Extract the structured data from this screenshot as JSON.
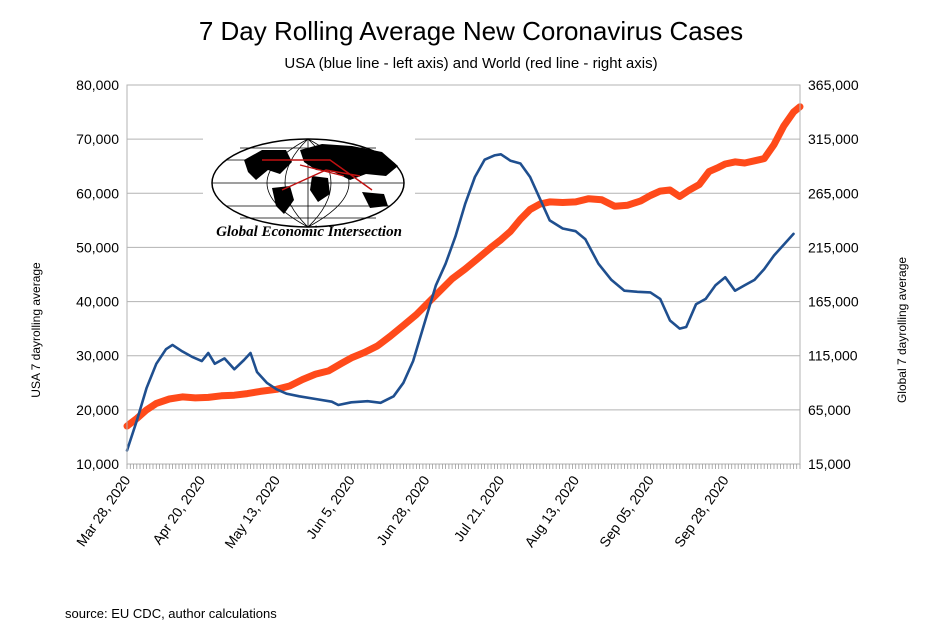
{
  "chart_data": {
    "type": "line",
    "title": "7 Day Rolling Average New Coronavirus Cases",
    "subtitle": "USA (blue line - left axis) and World (red line - right axis)",
    "ylabel_left": "USA 7 dayrolling average",
    "ylabel_right": "Global 7 dayrolling average",
    "source": "source: EU CDC, author calculations",
    "logo_text": "Global Economic Intersection",
    "x_axis": {
      "start_date": "2020-03-28",
      "end_date": "2020-10-21",
      "tick_labels": [
        "Mar 28, 2020",
        "Apr 20, 2020",
        "May 13, 2020",
        "Jun 5, 2020",
        "Jun 28, 2020",
        "Jul 21, 2020",
        "Aug 13, 2020",
        "Sep 05, 2020",
        "Sep 28, 2020"
      ]
    },
    "y_left": {
      "min": 10000,
      "max": 80000,
      "step": 10000,
      "tick_labels": [
        "10,000",
        "20,000",
        "30,000",
        "40,000",
        "50,000",
        "60,000",
        "70,000",
        "80,000"
      ]
    },
    "y_right": {
      "min": 15000,
      "max": 365000,
      "step": 50000,
      "tick_labels": [
        "15,000",
        "65,000",
        "115,000",
        "165,000",
        "215,000",
        "265,000",
        "315,000",
        "365,000"
      ]
    },
    "grid": true,
    "series": [
      {
        "name": "USA",
        "axis": "left",
        "color": "#1f4f8f",
        "points": [
          [
            "2020-03-28",
            12500
          ],
          [
            "2020-03-31",
            18000
          ],
          [
            "2020-04-03",
            24000
          ],
          [
            "2020-04-06",
            28500
          ],
          [
            "2020-04-09",
            31200
          ],
          [
            "2020-04-11",
            32000
          ],
          [
            "2020-04-14",
            30800
          ],
          [
            "2020-04-17",
            29800
          ],
          [
            "2020-04-20",
            29000
          ],
          [
            "2020-04-22",
            30500
          ],
          [
            "2020-04-24",
            28500
          ],
          [
            "2020-04-27",
            29500
          ],
          [
            "2020-04-30",
            27500
          ],
          [
            "2020-05-03",
            29200
          ],
          [
            "2020-05-05",
            30500
          ],
          [
            "2020-05-07",
            27000
          ],
          [
            "2020-05-10",
            25000
          ],
          [
            "2020-05-13",
            23800
          ],
          [
            "2020-05-16",
            23000
          ],
          [
            "2020-05-20",
            22500
          ],
          [
            "2020-05-25",
            22000
          ],
          [
            "2020-05-30",
            21500
          ],
          [
            "2020-06-01",
            20900
          ],
          [
            "2020-06-05",
            21400
          ],
          [
            "2020-06-10",
            21600
          ],
          [
            "2020-06-14",
            21300
          ],
          [
            "2020-06-18",
            22500
          ],
          [
            "2020-06-21",
            25000
          ],
          [
            "2020-06-24",
            29000
          ],
          [
            "2020-06-28",
            37000
          ],
          [
            "2020-07-01",
            43000
          ],
          [
            "2020-07-04",
            47000
          ],
          [
            "2020-07-07",
            52000
          ],
          [
            "2020-07-10",
            58000
          ],
          [
            "2020-07-13",
            63000
          ],
          [
            "2020-07-16",
            66200
          ],
          [
            "2020-07-19",
            67000
          ],
          [
            "2020-07-21",
            67200
          ],
          [
            "2020-07-24",
            66000
          ],
          [
            "2020-07-27",
            65500
          ],
          [
            "2020-07-30",
            63000
          ],
          [
            "2020-08-02",
            59000
          ],
          [
            "2020-08-05",
            55000
          ],
          [
            "2020-08-09",
            53500
          ],
          [
            "2020-08-13",
            53000
          ],
          [
            "2020-08-16",
            51500
          ],
          [
            "2020-08-20",
            47000
          ],
          [
            "2020-08-24",
            44000
          ],
          [
            "2020-08-28",
            42000
          ],
          [
            "2020-09-01",
            41800
          ],
          [
            "2020-09-05",
            41700
          ],
          [
            "2020-09-08",
            40500
          ],
          [
            "2020-09-11",
            36500
          ],
          [
            "2020-09-14",
            35000
          ],
          [
            "2020-09-16",
            35300
          ],
          [
            "2020-09-19",
            39500
          ],
          [
            "2020-09-22",
            40500
          ],
          [
            "2020-09-25",
            43000
          ],
          [
            "2020-09-28",
            44500
          ],
          [
            "2020-10-01",
            42000
          ],
          [
            "2020-10-04",
            43000
          ],
          [
            "2020-10-07",
            44000
          ],
          [
            "2020-10-10",
            46000
          ],
          [
            "2020-10-13",
            48500
          ],
          [
            "2020-10-16",
            50500
          ],
          [
            "2020-10-19",
            52500
          ]
        ]
      },
      {
        "name": "World",
        "axis": "right",
        "color": "#ff4a1a",
        "points": [
          [
            "2020-03-28",
            50000
          ],
          [
            "2020-03-31",
            57000
          ],
          [
            "2020-04-03",
            65000
          ],
          [
            "2020-04-06",
            71000
          ],
          [
            "2020-04-10",
            75000
          ],
          [
            "2020-04-14",
            77000
          ],
          [
            "2020-04-18",
            76000
          ],
          [
            "2020-04-22",
            76500
          ],
          [
            "2020-04-26",
            78000
          ],
          [
            "2020-04-30",
            78500
          ],
          [
            "2020-05-04",
            80000
          ],
          [
            "2020-05-08",
            82000
          ],
          [
            "2020-05-13",
            84000
          ],
          [
            "2020-05-17",
            87000
          ],
          [
            "2020-05-21",
            93000
          ],
          [
            "2020-05-25",
            98000
          ],
          [
            "2020-05-29",
            101000
          ],
          [
            "2020-06-02",
            108000
          ],
          [
            "2020-06-05",
            113000
          ],
          [
            "2020-06-09",
            118000
          ],
          [
            "2020-06-13",
            124000
          ],
          [
            "2020-06-17",
            133000
          ],
          [
            "2020-06-21",
            143000
          ],
          [
            "2020-06-25",
            153000
          ],
          [
            "2020-06-28",
            162000
          ],
          [
            "2020-07-02",
            174000
          ],
          [
            "2020-07-06",
            186000
          ],
          [
            "2020-07-10",
            195000
          ],
          [
            "2020-07-14",
            205000
          ],
          [
            "2020-07-18",
            215000
          ],
          [
            "2020-07-21",
            222000
          ],
          [
            "2020-07-24",
            230000
          ],
          [
            "2020-07-27",
            241000
          ],
          [
            "2020-07-30",
            250000
          ],
          [
            "2020-08-02",
            255000
          ],
          [
            "2020-08-05",
            257000
          ],
          [
            "2020-08-09",
            256500
          ],
          [
            "2020-08-13",
            257000
          ],
          [
            "2020-08-17",
            260000
          ],
          [
            "2020-08-21",
            259000
          ],
          [
            "2020-08-25",
            253000
          ],
          [
            "2020-08-29",
            254000
          ],
          [
            "2020-09-02",
            258000
          ],
          [
            "2020-09-05",
            263000
          ],
          [
            "2020-09-08",
            267000
          ],
          [
            "2020-09-11",
            268000
          ],
          [
            "2020-09-14",
            262000
          ],
          [
            "2020-09-17",
            268000
          ],
          [
            "2020-09-20",
            273000
          ],
          [
            "2020-09-23",
            285000
          ],
          [
            "2020-09-26",
            289000
          ],
          [
            "2020-09-28",
            292000
          ],
          [
            "2020-10-01",
            294000
          ],
          [
            "2020-10-04",
            293000
          ],
          [
            "2020-10-07",
            295000
          ],
          [
            "2020-10-10",
            297000
          ],
          [
            "2020-10-13",
            310000
          ],
          [
            "2020-10-16",
            327000
          ],
          [
            "2020-10-19",
            340000
          ],
          [
            "2020-10-21",
            345000
          ]
        ]
      }
    ]
  }
}
